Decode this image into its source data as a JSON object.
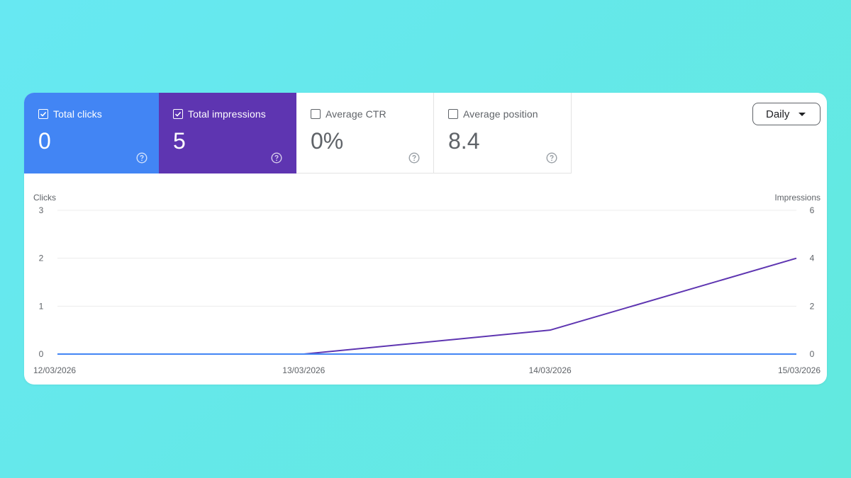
{
  "metrics": [
    {
      "label": "Total clicks",
      "value": "0",
      "checked": true,
      "color": "#4285f4"
    },
    {
      "label": "Total impressions",
      "value": "5",
      "checked": true,
      "color": "#5e35b1"
    },
    {
      "label": "Average CTR",
      "value": "0%",
      "checked": false,
      "color": "#ffffff"
    },
    {
      "label": "Average position",
      "value": "8.4",
      "checked": false,
      "color": "#ffffff"
    }
  ],
  "period_selector": {
    "label": "Daily",
    "icon": "caret-down-icon"
  },
  "chart_data": {
    "type": "line",
    "x": [
      "12/03/2026",
      "13/03/2026",
      "14/03/2026",
      "15/03/2026"
    ],
    "left_axis": {
      "label": "Clicks",
      "ticks": [
        0,
        1,
        2,
        3
      ],
      "range": [
        0,
        3
      ]
    },
    "right_axis": {
      "label": "Impressions",
      "ticks": [
        0,
        2,
        4,
        6
      ],
      "range": [
        0,
        6
      ]
    },
    "series": [
      {
        "name": "Clicks",
        "axis": "left",
        "color": "#4285f4",
        "values": [
          0,
          0,
          0,
          0
        ]
      },
      {
        "name": "Impressions",
        "axis": "right",
        "color": "#5e35b1",
        "values": [
          0,
          0,
          1,
          4
        ]
      }
    ],
    "grid": true
  }
}
